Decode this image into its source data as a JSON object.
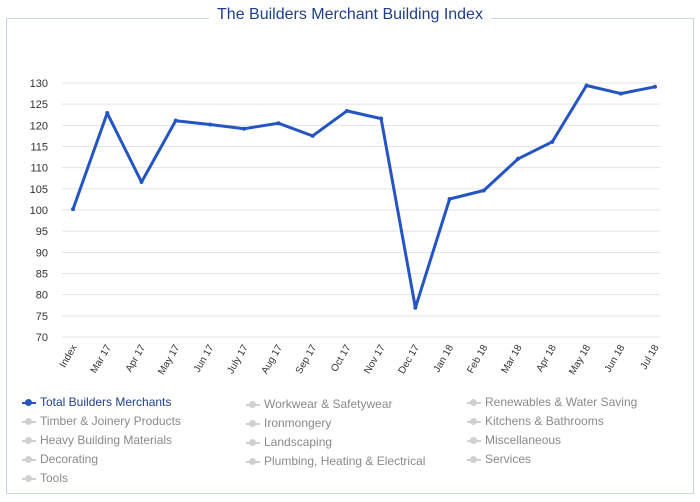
{
  "chart_data": {
    "type": "line",
    "title": "The Builders Merchant Building Index",
    "categories": [
      "Index",
      "Mar 17",
      "Apr 17",
      "May 17",
      "Jun 17",
      "July 17",
      "Aug 17",
      "Sep 17",
      "Oct 17",
      "Nov 17",
      "Dec 17",
      "Jan 18",
      "Feb 18",
      "Mar 18",
      "Apr 18",
      "May 18",
      "Jun 18",
      "Jul 18"
    ],
    "series": [
      {
        "name": "Total Builders Merchants",
        "values": [
          100.2,
          122.9,
          106.6,
          121.1,
          120.2,
          119.2,
          120.5,
          117.5,
          123.4,
          121.6,
          76.9,
          102.6,
          104.6,
          112.1,
          116.1,
          129.4,
          127.5,
          129.1
        ]
      }
    ],
    "ylim": [
      70,
      130
    ],
    "yticks": [
      70,
      75,
      80,
      85,
      90,
      95,
      100,
      105,
      110,
      115,
      120,
      125,
      130
    ],
    "grid": true,
    "legend_position": "bottom",
    "legend": {
      "columns": [
        [
          "Total Builders Merchants",
          "Timber & Joinery Products",
          "Heavy Building Materials",
          "Decorating",
          "Tools"
        ],
        [
          "Workwear & Safetywear",
          "Ironmongery",
          "Landscaping",
          "Plumbing, Heating & Electrical"
        ],
        [
          "Renewables & Water Saving",
          "Kitchens & Bathrooms",
          "Miscellaneous",
          "Services"
        ]
      ],
      "active": "Total Builders Merchants"
    },
    "colors": {
      "line": "#2455c3",
      "grid": "#e3e3e3",
      "inactive": "#d0d0d0",
      "title": "#1f3f8a"
    }
  }
}
